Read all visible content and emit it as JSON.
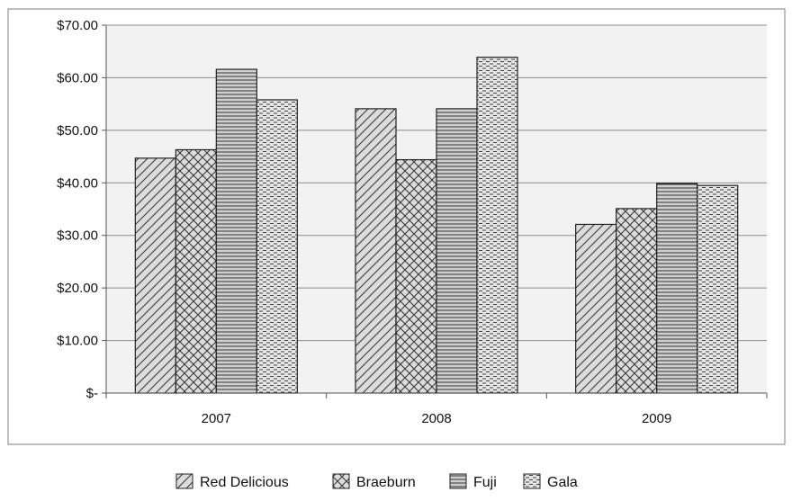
{
  "chart_data": {
    "type": "bar",
    "categories": [
      "2007",
      "2008",
      "2009"
    ],
    "series": [
      {
        "name": "Red Delicious",
        "values": [
          44.7,
          54.1,
          32.1
        ],
        "pattern": "diagonal-hatch"
      },
      {
        "name": "Braeburn",
        "values": [
          46.3,
          44.4,
          35.1
        ],
        "pattern": "cross-hatch"
      },
      {
        "name": "Fuji",
        "values": [
          61.6,
          54.1,
          39.9
        ],
        "pattern": "horizontal-lines"
      },
      {
        "name": "Gala",
        "values": [
          55.8,
          63.9,
          39.5
        ],
        "pattern": "dashed-lines"
      }
    ],
    "ylim": [
      0,
      70
    ],
    "yticks": [
      0,
      10,
      20,
      30,
      40,
      50,
      60,
      70
    ],
    "ytick_labels": [
      "$-",
      "$10.00",
      "$20.00",
      "$30.00",
      "$40.00",
      "$50.00",
      "$60.00",
      "$70.00"
    ],
    "grid": true,
    "legend_position": "bottom",
    "colors": {
      "plot_background": "#f2f2f2",
      "bar_fill": "#d9d9d9",
      "bar_stroke": "#222222",
      "gridline": "#8c8c8c",
      "frame": "#7f7f7f"
    }
  }
}
